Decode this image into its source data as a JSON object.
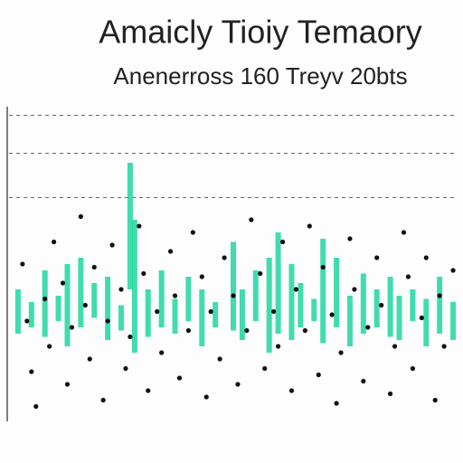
{
  "chart_data": {
    "type": "strip",
    "title": "Amaicly Tioiy Temaory",
    "subtitle": "Anenerross 160 Treyv 20bts",
    "xlim": [
      0,
      100
    ],
    "ylim": [
      0,
      100
    ],
    "grid_y": [
      95,
      83,
      69
    ],
    "series": [
      {
        "color": "#1fd6a0",
        "x": [
          2,
          5,
          8,
          11,
          13,
          16,
          19,
          22,
          25,
          27,
          28,
          31,
          34,
          37,
          40,
          43,
          46,
          50,
          52,
          55,
          58,
          60,
          63,
          65,
          68,
          70,
          73,
          76,
          79,
          82,
          85,
          87,
          90,
          93,
          96,
          99
        ],
        "low": [
          26,
          28,
          25,
          30,
          22,
          28,
          31,
          24,
          27,
          40,
          20,
          25,
          28,
          26,
          30,
          22,
          28,
          27,
          24,
          30,
          20,
          26,
          24,
          28,
          30,
          23,
          28,
          22,
          26,
          28,
          25,
          24,
          30,
          22,
          26,
          24
        ],
        "high": [
          40,
          36,
          46,
          38,
          48,
          50,
          42,
          44,
          35,
          80,
          62,
          40,
          46,
          37,
          44,
          40,
          36,
          55,
          40,
          46,
          50,
          58,
          48,
          42,
          37,
          56,
          50,
          38,
          45,
          40,
          44,
          38,
          40,
          37,
          44,
          36
        ]
      },
      {
        "color": "#111111",
        "x": [
          3,
          4,
          5,
          6,
          8,
          9,
          10,
          12,
          13,
          14,
          16,
          17,
          18,
          19,
          21,
          22,
          23,
          25,
          26,
          27,
          29,
          30,
          31,
          33,
          34,
          36,
          37,
          38,
          40,
          41,
          43,
          44,
          45,
          47,
          48,
          50,
          51,
          53,
          54,
          56,
          57,
          59,
          60,
          61,
          63,
          64,
          66,
          67,
          69,
          70,
          72,
          73,
          74,
          76,
          77,
          79,
          80,
          82,
          83,
          85,
          86,
          88,
          89,
          90,
          92,
          93,
          95,
          96,
          97,
          99
        ],
        "values": [
          48,
          30,
          14,
          3,
          37,
          22,
          55,
          42,
          10,
          28,
          63,
          35,
          18,
          47,
          5,
          30,
          54,
          40,
          15,
          25,
          60,
          45,
          8,
          33,
          20,
          52,
          38,
          12,
          27,
          58,
          44,
          6,
          33,
          18,
          50,
          38,
          10,
          27,
          62,
          45,
          15,
          33,
          22,
          55,
          8,
          40,
          27,
          60,
          13,
          47,
          32,
          4,
          20,
          56,
          40,
          11,
          28,
          50,
          35,
          7,
          22,
          58,
          44,
          15,
          31,
          50,
          5,
          38,
          22,
          46
        ]
      }
    ]
  }
}
